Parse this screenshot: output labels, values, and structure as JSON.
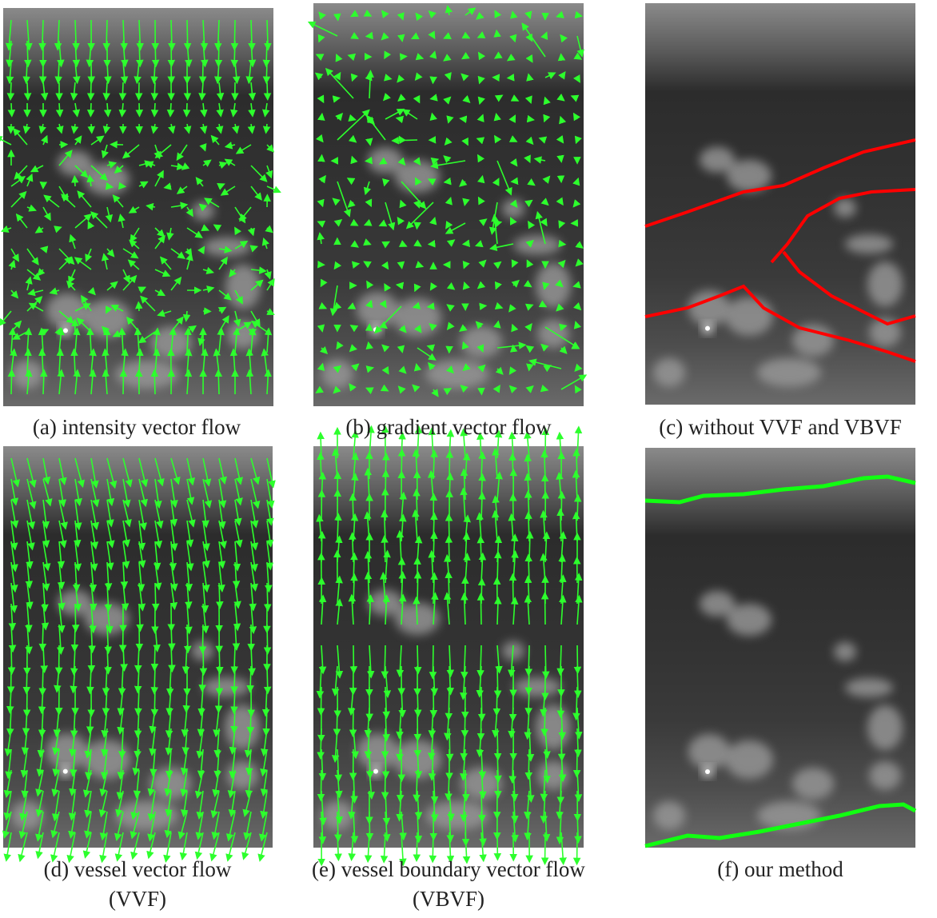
{
  "panels": [
    {
      "caption": [
        "(a) intensity vector flow"
      ]
    },
    {
      "caption": [
        "(b) gradient vector flow"
      ]
    },
    {
      "caption": [
        "(c) without VVF and VBVF"
      ]
    },
    {
      "caption": [
        "(d) vessel vector flow",
        "(VVF)"
      ]
    },
    {
      "caption": [
        "(e) vessel boundary vector flow",
        "(VBVF)"
      ]
    },
    {
      "caption": [
        "(f) our method"
      ]
    }
  ]
}
